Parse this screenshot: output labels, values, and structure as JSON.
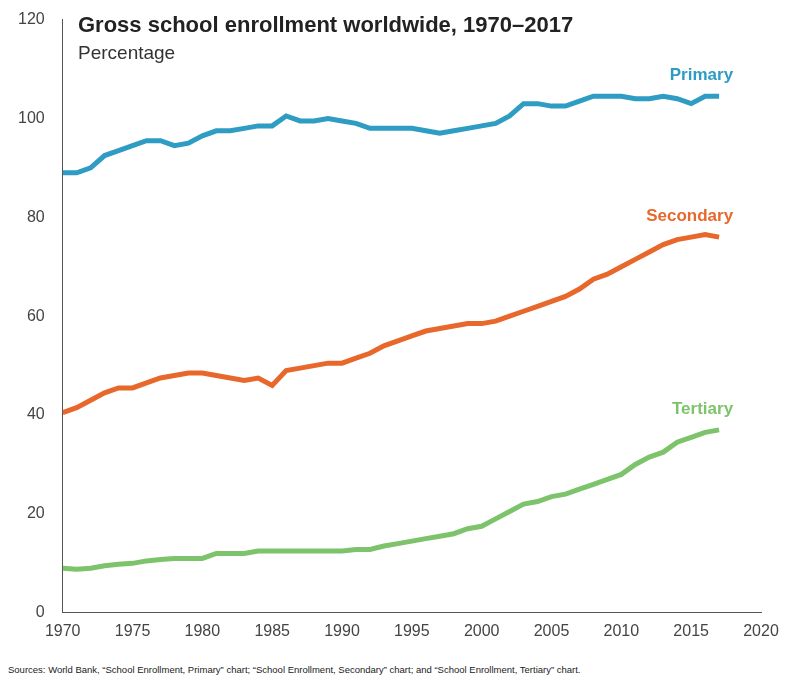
{
  "chart_data": {
    "type": "line",
    "title": "Gross school enrollment worldwide, 1970–2017",
    "subtitle": "Percentage",
    "source": "Sources: World Bank, “School Enrollment, Primary” chart; “School Enrollment, Secondary” chart; and “School Enrollment, Tertiary” chart.",
    "x": [
      1970,
      1971,
      1972,
      1973,
      1974,
      1975,
      1976,
      1977,
      1978,
      1979,
      1980,
      1981,
      1982,
      1983,
      1984,
      1985,
      1986,
      1987,
      1988,
      1989,
      1990,
      1991,
      1992,
      1993,
      1994,
      1995,
      1996,
      1997,
      1998,
      1999,
      2000,
      2001,
      2002,
      2003,
      2004,
      2005,
      2006,
      2007,
      2008,
      2009,
      2010,
      2011,
      2012,
      2013,
      2014,
      2015,
      2016,
      2017
    ],
    "series": [
      {
        "name": "Primary",
        "color": "#2e9cc3",
        "values": [
          89,
          89,
          90,
          92.5,
          93.5,
          94.5,
          95.5,
          95.5,
          94.5,
          95,
          96.5,
          97.5,
          97.5,
          98,
          98.5,
          98.5,
          100.5,
          99.5,
          99.5,
          100,
          99.5,
          99,
          98,
          98,
          98,
          98,
          97.5,
          97,
          97.5,
          98,
          98.5,
          99,
          100.5,
          103,
          103,
          102.5,
          102.5,
          103.5,
          104.5,
          104.5,
          104.5,
          104,
          104,
          104.5,
          104,
          103,
          104.5,
          104.5
        ]
      },
      {
        "name": "Secondary",
        "color": "#e8682c",
        "values": [
          40.5,
          41.5,
          43,
          44.5,
          45.5,
          45.5,
          46.5,
          47.5,
          48,
          48.5,
          48.5,
          48,
          47.5,
          47,
          47.5,
          46,
          49,
          49.5,
          50,
          50.5,
          50.5,
          51.5,
          52.5,
          54,
          55,
          56,
          57,
          57.5,
          58,
          58.5,
          58.5,
          59,
          60,
          61,
          62,
          63,
          64,
          65.5,
          67.5,
          68.5,
          70,
          71.5,
          73,
          74.5,
          75.5,
          76,
          76.5,
          76
        ]
      },
      {
        "name": "Tertiary",
        "color": "#7dc36b",
        "values": [
          9,
          8.8,
          9,
          9.5,
          9.8,
          10,
          10.5,
          10.8,
          11,
          11,
          11,
          12,
          12,
          12,
          12.5,
          12.5,
          12.5,
          12.5,
          12.5,
          12.5,
          12.5,
          12.8,
          12.8,
          13.5,
          14,
          14.5,
          15,
          15.5,
          16,
          17,
          17.5,
          19,
          20.5,
          22,
          22.5,
          23.5,
          24,
          25,
          26,
          27,
          28,
          30,
          31.5,
          32.5,
          34.5,
          35.5,
          36.5,
          37
        ]
      }
    ],
    "xlim": [
      1970,
      2020
    ],
    "xticks": [
      1970,
      1975,
      1980,
      1985,
      1990,
      1995,
      2000,
      2005,
      2010,
      2015,
      2020
    ],
    "ylim": [
      0,
      120
    ],
    "yticks": [
      0,
      20,
      40,
      60,
      80,
      100,
      120
    ],
    "grid": false
  }
}
